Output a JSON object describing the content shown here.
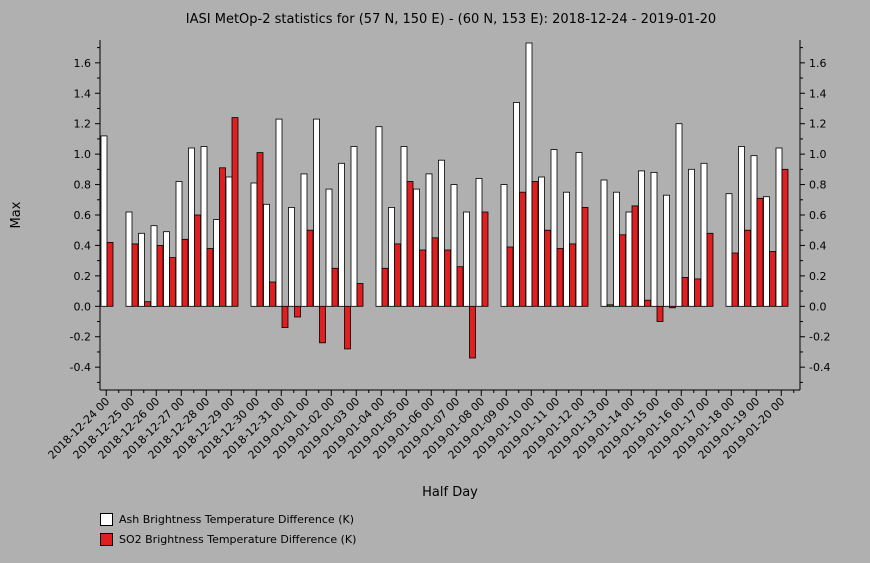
{
  "chart_data": {
    "type": "bar",
    "title": "IASI MetOp-2 statistics for (57 N, 150 E) - (60 N, 153 E): 2018-12-24 - 2019-01-20",
    "xlabel": "Half Day",
    "ylabel": "Max",
    "ylim": [
      -0.55,
      1.75
    ],
    "yticks": [
      -0.4,
      -0.2,
      0.0,
      0.2,
      0.4,
      0.6,
      0.8,
      1.0,
      1.2,
      1.4,
      1.6
    ],
    "ytick_labels": [
      "-0.4",
      "-0.2",
      "0.0",
      "0.2",
      "0.4",
      "0.6",
      "0.8",
      "1.0",
      "1.2",
      "1.4",
      "1.6"
    ],
    "categories": [
      "2018-12-24 00",
      "2018-12-24 12",
      "2018-12-25 00",
      "2018-12-25 12",
      "2018-12-26 00",
      "2018-12-26 12",
      "2018-12-27 00",
      "2018-12-27 12",
      "2018-12-28 00",
      "2018-12-28 12",
      "2018-12-29 00",
      "2018-12-29 12",
      "2018-12-30 00",
      "2018-12-30 12",
      "2018-12-31 00",
      "2018-12-31 12",
      "2019-01-01 00",
      "2019-01-01 12",
      "2019-01-02 00",
      "2019-01-02 12",
      "2019-01-03 00",
      "2019-01-03 12",
      "2019-01-04 00",
      "2019-01-04 12",
      "2019-01-05 00",
      "2019-01-05 12",
      "2019-01-06 00",
      "2019-01-06 12",
      "2019-01-07 00",
      "2019-01-07 12",
      "2019-01-08 00",
      "2019-01-08 12",
      "2019-01-09 00",
      "2019-01-09 12",
      "2019-01-10 00",
      "2019-01-10 12",
      "2019-01-11 00",
      "2019-01-11 12",
      "2019-01-12 00",
      "2019-01-12 12",
      "2019-01-13 00",
      "2019-01-13 12",
      "2019-01-14 00",
      "2019-01-14 12",
      "2019-01-15 00",
      "2019-01-15 12",
      "2019-01-16 00",
      "2019-01-16 12",
      "2019-01-17 00",
      "2019-01-17 12",
      "2019-01-18 00",
      "2019-01-18 12",
      "2019-01-19 00",
      "2019-01-19 12",
      "2019-01-20 00",
      "2019-01-20 12"
    ],
    "tick_labels": [
      "2018-12-24 00",
      "2018-12-25 00",
      "2018-12-26 00",
      "2018-12-27 00",
      "2018-12-28 00",
      "2018-12-29 00",
      "2018-12-30 00",
      "2018-12-31 00",
      "2019-01-01 00",
      "2019-01-02 00",
      "2019-01-03 00",
      "2019-01-04 00",
      "2019-01-05 00",
      "2019-01-06 00",
      "2019-01-07 00",
      "2019-01-08 00",
      "2019-01-09 00",
      "2019-01-10 00",
      "2019-01-11 00",
      "2019-01-12 00",
      "2019-01-13 00",
      "2019-01-14 00",
      "2019-01-15 00",
      "2019-01-16 00",
      "2019-01-17 00",
      "2019-01-18 00",
      "2019-01-19 00",
      "2019-01-20 00"
    ],
    "series": [
      {
        "name": "Ash Brightness Temperature Difference (K)",
        "color": "#ffffff",
        "values": [
          1.12,
          null,
          0.62,
          0.48,
          0.53,
          0.49,
          0.82,
          1.04,
          1.05,
          0.57,
          0.85,
          null,
          0.81,
          0.67,
          1.23,
          0.65,
          0.87,
          1.23,
          0.77,
          0.94,
          1.05,
          null,
          1.18,
          0.65,
          1.05,
          0.77,
          0.87,
          0.96,
          0.8,
          0.62,
          0.84,
          null,
          0.8,
          1.34,
          1.73,
          0.85,
          1.03,
          0.75,
          1.01,
          null,
          0.83,
          0.75,
          0.62,
          0.89,
          0.88,
          0.73,
          1.2,
          0.9,
          0.94,
          null,
          0.74,
          1.05,
          0.99,
          0.72,
          1.04,
          null
        ]
      },
      {
        "name": "SO2 Brightness Temperature Difference (K)",
        "color": "#e02020",
        "values": [
          0.42,
          null,
          0.41,
          0.03,
          0.4,
          0.32,
          0.44,
          0.6,
          0.38,
          0.91,
          1.24,
          null,
          1.01,
          0.16,
          -0.14,
          -0.07,
          0.5,
          -0.24,
          0.25,
          -0.28,
          0.15,
          null,
          0.25,
          0.41,
          0.82,
          0.37,
          0.45,
          0.37,
          0.26,
          -0.34,
          0.62,
          null,
          0.39,
          0.75,
          0.82,
          0.5,
          0.38,
          0.41,
          0.65,
          null,
          0.01,
          0.47,
          0.66,
          0.04,
          -0.1,
          -0.01,
          0.19,
          0.18,
          0.48,
          null,
          0.35,
          0.5,
          0.71,
          0.36,
          0.9,
          null
        ]
      }
    ],
    "legend_placement": "bottom-left"
  }
}
